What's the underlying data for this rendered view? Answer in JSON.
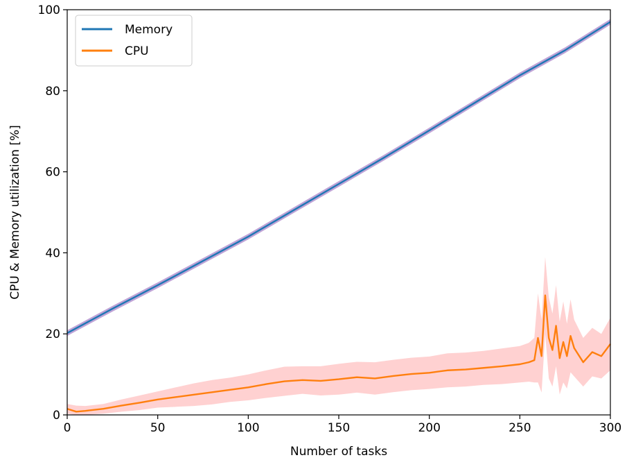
{
  "chart_data": {
    "type": "line",
    "title": "",
    "xlabel": "Number of tasks",
    "ylabel": "CPU & Memory utilization [%]",
    "xlim": [
      0,
      300
    ],
    "ylim": [
      0,
      100
    ],
    "xticks": [
      0,
      50,
      100,
      150,
      200,
      250,
      300
    ],
    "yticks": [
      0,
      20,
      40,
      60,
      80,
      100
    ],
    "grid": false,
    "legend": {
      "placement": "top-left"
    },
    "series": [
      {
        "name": "Memory",
        "color": "#1f77b4",
        "band_color": "#9467bd",
        "x": [
          0,
          25,
          50,
          75,
          100,
          125,
          150,
          175,
          200,
          225,
          250,
          275,
          300
        ],
        "values": [
          20.2,
          26.2,
          32.0,
          38.0,
          44.0,
          50.5,
          57.0,
          63.5,
          70.2,
          77.0,
          83.8,
          90.0,
          97.0
        ],
        "band_halfwidth": 0.7
      },
      {
        "name": "CPU",
        "color": "#ff7f0e",
        "band_color": "#ffb3b3",
        "x": [
          0,
          5,
          10,
          20,
          30,
          40,
          50,
          60,
          70,
          80,
          90,
          100,
          110,
          120,
          130,
          140,
          150,
          160,
          170,
          180,
          190,
          200,
          210,
          220,
          230,
          240,
          250,
          255,
          258,
          260,
          262,
          264,
          266,
          268,
          270,
          272,
          274,
          276,
          278,
          280,
          285,
          290,
          295,
          300
        ],
        "values": [
          1.5,
          0.8,
          1.0,
          1.5,
          2.3,
          3.0,
          3.8,
          4.4,
          5.0,
          5.6,
          6.2,
          6.8,
          7.6,
          8.3,
          8.6,
          8.4,
          8.8,
          9.3,
          9.0,
          9.6,
          10.1,
          10.4,
          11.0,
          11.2,
          11.6,
          12.0,
          12.5,
          13.0,
          13.5,
          19.0,
          14.5,
          29.5,
          19.0,
          16.0,
          22.0,
          14.0,
          18.0,
          14.5,
          19.5,
          16.5,
          13.0,
          15.5,
          14.5,
          17.5
        ],
        "band_halfwidth": [
          1.2,
          1.5,
          1.2,
          1.2,
          1.5,
          1.8,
          2.0,
          2.4,
          2.8,
          3.0,
          3.0,
          3.2,
          3.4,
          3.6,
          3.4,
          3.6,
          3.8,
          3.8,
          4.0,
          4.0,
          4.0,
          4.0,
          4.2,
          4.2,
          4.2,
          4.4,
          4.5,
          4.8,
          5.5,
          11,
          9,
          9.5,
          10,
          9,
          10,
          9,
          10,
          8,
          9,
          7,
          6,
          6,
          5.5,
          6.5
        ]
      }
    ]
  }
}
